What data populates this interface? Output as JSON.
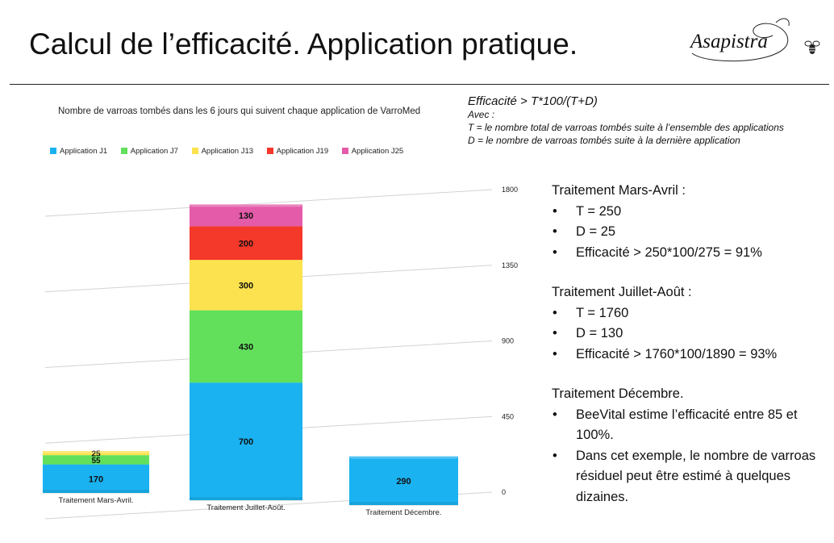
{
  "slide": {
    "title": "Calcul de l’efficacité. Application pratique.",
    "logo_text": "Asapistra"
  },
  "formula": {
    "line": "Efficacité > T*100/(T+D)",
    "avec": "Avec :",
    "t_def": "T = le nombre total de varroas tombés suite à l’ensemble des applications",
    "d_def": "D = le nombre de varroas tombés suite à la dernière application"
  },
  "chart_data": {
    "type": "bar",
    "stacked": true,
    "three_d": true,
    "title": "Nombre de varroas tombés dans les 6 jours qui suivent chaque application de VarroMed",
    "legend_position": "top-left",
    "categories": [
      "Traitement Mars-Avril.",
      "Traitement Juillet-Août.",
      "Traitement Décembre."
    ],
    "series": [
      {
        "name": "Application J1",
        "color": "#1ab2f0",
        "values": [
          170,
          700,
          290
        ]
      },
      {
        "name": "Application J7",
        "color": "#62e05c",
        "values": [
          55,
          430,
          null
        ]
      },
      {
        "name": "Application J13",
        "color": "#fbe24e",
        "values": [
          25,
          300,
          null
        ]
      },
      {
        "name": "Application J19",
        "color": "#f4382a",
        "values": [
          null,
          200,
          null
        ]
      },
      {
        "name": "Application J25",
        "color": "#e45ba9",
        "values": [
          null,
          130,
          null
        ]
      }
    ],
    "y_ticks": [
      0,
      450,
      900,
      1350,
      1800
    ],
    "ylim": [
      0,
      1800
    ],
    "y_axis_side": "right",
    "grid": true
  },
  "notes": {
    "sections": [
      {
        "heading": "Traitement Mars-Avril :",
        "items": [
          "T = 250",
          "D = 25",
          "Efficacité > 250*100/275 = 91%"
        ]
      },
      {
        "heading": " Traitement Juillet-Août :",
        "items": [
          "T = 1760",
          "D = 130",
          "Efficacité > 1760*100/1890 = 93%"
        ]
      },
      {
        "heading": "Traitement Décembre.",
        "items": [
          "BeeVital estime l’efficacité entre 85 et 100%.",
          "Dans cet exemple, le nombre de varroas résiduel peut être estimé à quelques dizaines."
        ]
      }
    ]
  }
}
